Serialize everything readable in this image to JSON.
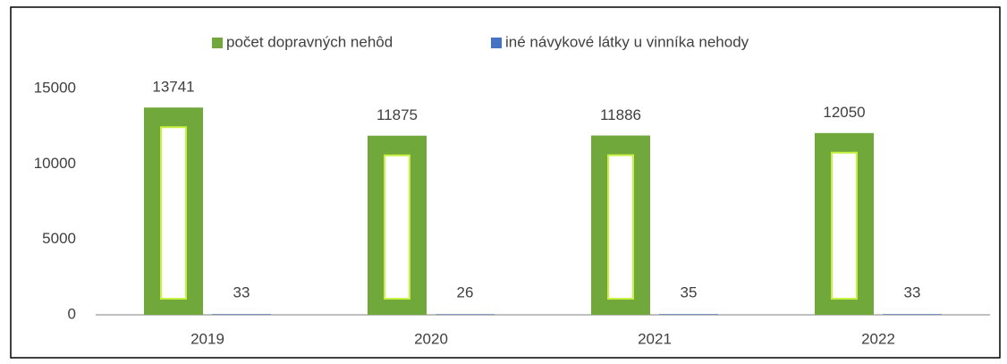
{
  "chart_data": {
    "type": "bar",
    "categories": [
      "2019",
      "2020",
      "2021",
      "2022"
    ],
    "series": [
      {
        "name": "počet dopravných nehôd",
        "color": "#70a83c",
        "values": [
          13741,
          11875,
          11886,
          12050
        ]
      },
      {
        "name": "iné návykové látky u vinníka nehody",
        "color": "#4472c4",
        "values": [
          33,
          26,
          35,
          33
        ]
      }
    ],
    "ylim": [
      0,
      15000
    ],
    "yticks": [
      0,
      5000,
      10000,
      15000
    ],
    "grid": false,
    "legend": "top"
  }
}
